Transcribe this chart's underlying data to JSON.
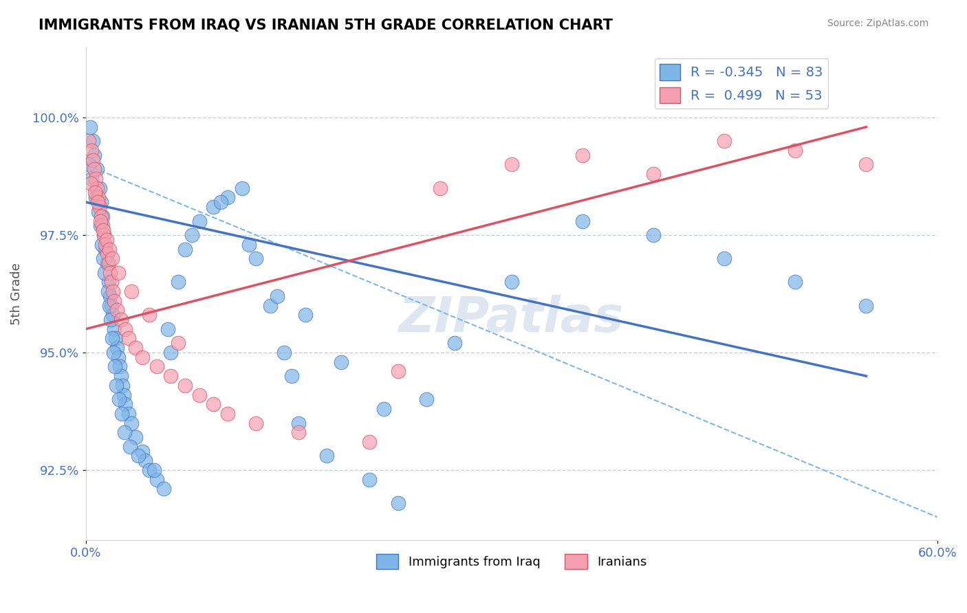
{
  "title": "IMMIGRANTS FROM IRAQ VS IRANIAN 5TH GRADE CORRELATION CHART",
  "source": "Source: ZipAtlas.com",
  "xlabel_bottom": "",
  "ylabel": "5th Grade",
  "x_tick_labels": [
    "0.0%",
    "60.0%"
  ],
  "y_tick_labels": [
    "92.5%",
    "95.0%",
    "97.5%",
    "100.0%"
  ],
  "xlim": [
    0.0,
    60.0
  ],
  "ylim": [
    91.0,
    101.5
  ],
  "yticks": [
    92.5,
    95.0,
    97.5,
    100.0
  ],
  "xticks": [
    0.0,
    60.0
  ],
  "legend1_label": "R = -0.345   N = 83",
  "legend2_label": "R =  0.499   N = 53",
  "scatter_blue_color": "#7EB6E8",
  "scatter_pink_color": "#F4A0B0",
  "trend_blue_color": "#4472C4",
  "trend_pink_color": "#E05060",
  "dashed_line_color": "#7EB6E8",
  "grid_color": "#C8D0D8",
  "watermark": "ZIPatlas",
  "watermark_color": "#C8D8E8",
  "bottom_legend_label1": "Immigrants from Iraq",
  "bottom_legend_label2": "Iranians",
  "blue_scatter_x": [
    0.3,
    0.5,
    0.6,
    0.8,
    1.0,
    1.1,
    1.2,
    1.3,
    1.4,
    1.5,
    1.6,
    1.7,
    1.8,
    1.9,
    2.0,
    2.1,
    2.2,
    2.3,
    2.4,
    2.5,
    2.6,
    2.7,
    2.8,
    3.0,
    3.2,
    3.5,
    4.0,
    4.2,
    4.5,
    5.0,
    5.5,
    6.0,
    6.5,
    7.0,
    8.0,
    9.0,
    10.0,
    11.0,
    12.0,
    13.0,
    14.0,
    14.5,
    15.0,
    17.0,
    20.0,
    22.0,
    0.2,
    0.4,
    0.7,
    0.9,
    1.05,
    1.15,
    1.25,
    1.35,
    1.55,
    1.65,
    1.75,
    1.85,
    1.95,
    2.05,
    2.15,
    2.35,
    2.55,
    2.75,
    3.1,
    3.7,
    4.8,
    5.8,
    7.5,
    9.5,
    11.5,
    13.5,
    15.5,
    18.0,
    21.0,
    24.0,
    26.0,
    30.0,
    35.0,
    40.0,
    45.0,
    50.0,
    55.0
  ],
  "blue_scatter_y": [
    99.8,
    99.5,
    99.2,
    98.9,
    98.5,
    98.2,
    97.9,
    97.5,
    97.2,
    96.9,
    96.5,
    96.2,
    96.0,
    95.8,
    95.5,
    95.3,
    95.1,
    94.9,
    94.7,
    94.5,
    94.3,
    94.1,
    93.9,
    93.7,
    93.5,
    93.2,
    92.9,
    92.7,
    92.5,
    92.3,
    92.1,
    95.0,
    96.5,
    97.2,
    97.8,
    98.1,
    98.3,
    98.5,
    97.0,
    96.0,
    95.0,
    94.5,
    93.5,
    92.8,
    92.3,
    91.8,
    99.0,
    98.7,
    98.3,
    98.0,
    97.7,
    97.3,
    97.0,
    96.7,
    96.3,
    96.0,
    95.7,
    95.3,
    95.0,
    94.7,
    94.3,
    94.0,
    93.7,
    93.3,
    93.0,
    92.8,
    92.5,
    95.5,
    97.5,
    98.2,
    97.3,
    96.2,
    95.8,
    94.8,
    93.8,
    94.0,
    95.2,
    96.5,
    97.8,
    97.5,
    97.0,
    96.5,
    96.0
  ],
  "pink_scatter_x": [
    0.2,
    0.4,
    0.5,
    0.6,
    0.7,
    0.8,
    0.9,
    1.0,
    1.1,
    1.2,
    1.3,
    1.4,
    1.5,
    1.6,
    1.7,
    1.8,
    1.9,
    2.0,
    2.2,
    2.5,
    2.8,
    3.0,
    3.5,
    4.0,
    5.0,
    6.0,
    7.0,
    8.0,
    9.0,
    10.0,
    12.0,
    15.0,
    20.0,
    25.0,
    30.0,
    35.0,
    40.0,
    45.0,
    50.0,
    55.0,
    0.35,
    0.65,
    0.85,
    1.05,
    1.25,
    1.45,
    1.65,
    1.85,
    2.3,
    3.2,
    4.5,
    6.5,
    22.0
  ],
  "pink_scatter_y": [
    99.5,
    99.3,
    99.1,
    98.9,
    98.7,
    98.5,
    98.3,
    98.1,
    97.9,
    97.7,
    97.5,
    97.3,
    97.1,
    96.9,
    96.7,
    96.5,
    96.3,
    96.1,
    95.9,
    95.7,
    95.5,
    95.3,
    95.1,
    94.9,
    94.7,
    94.5,
    94.3,
    94.1,
    93.9,
    93.7,
    93.5,
    93.3,
    93.1,
    98.5,
    99.0,
    99.2,
    98.8,
    99.5,
    99.3,
    99.0,
    98.6,
    98.4,
    98.2,
    97.8,
    97.6,
    97.4,
    97.2,
    97.0,
    96.7,
    96.3,
    95.8,
    95.2,
    94.6
  ],
  "blue_trend_x": [
    0.0,
    55.0
  ],
  "blue_trend_y": [
    98.2,
    94.5
  ],
  "pink_trend_x": [
    0.0,
    55.0
  ],
  "pink_trend_y": [
    95.5,
    99.8
  ],
  "dashed_trend_x": [
    0.0,
    60.0
  ],
  "dashed_trend_y": [
    99.0,
    91.5
  ]
}
